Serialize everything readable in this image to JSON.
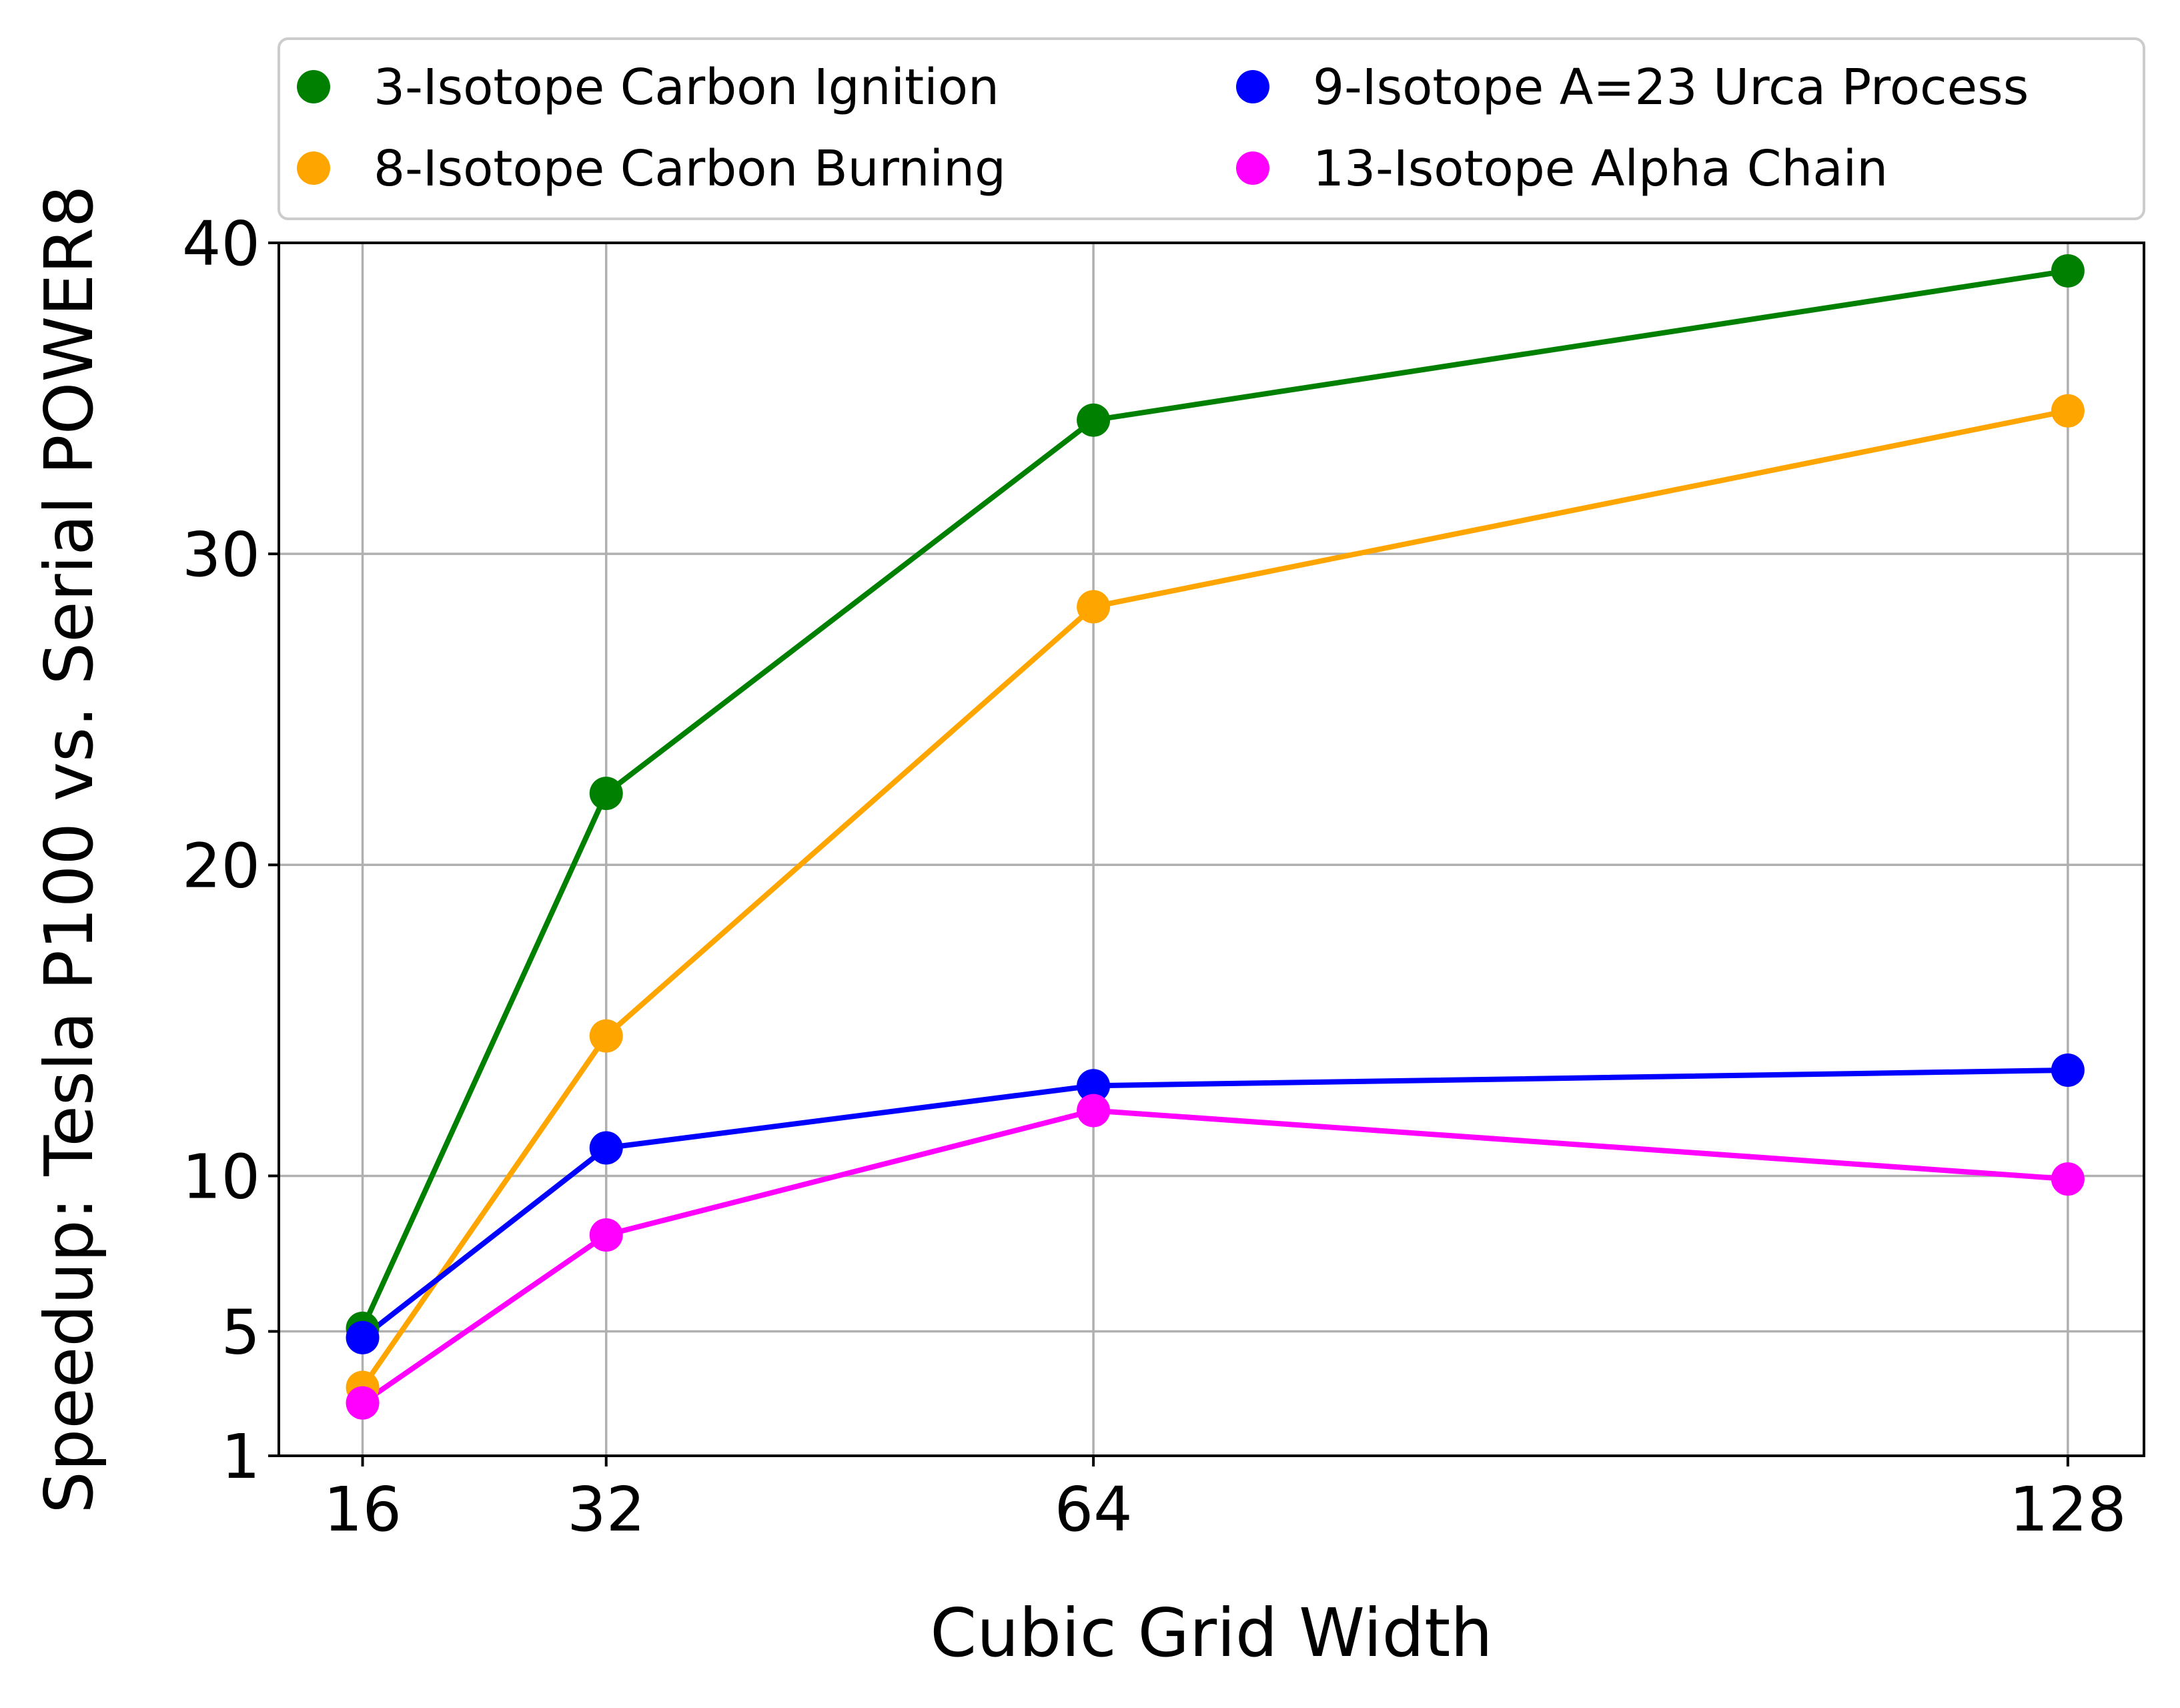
{
  "chart_data": {
    "type": "line",
    "title": "",
    "xlabel": "Cubic Grid Width",
    "ylabel": "Speedup: Tesla P100 vs. Serial POWER8",
    "x": [
      16,
      32,
      64,
      128
    ],
    "xticks": [
      16,
      32,
      64,
      128
    ],
    "yticks": [
      1,
      5,
      10,
      20,
      30,
      40
    ],
    "xlim": [
      10.5,
      133
    ],
    "ylim": [
      1,
      40
    ],
    "grid": true,
    "legend": "top, two columns, above plot",
    "series": [
      {
        "name": "3-Isotope Carbon Ignition",
        "color": "#008000",
        "values": [
          5.1,
          22.3,
          34.3,
          39.1
        ]
      },
      {
        "name": "8-Isotope Carbon Burning",
        "color": "#FFA500",
        "values": [
          3.2,
          14.5,
          28.3,
          34.6
        ]
      },
      {
        "name": "9-Isotope A=23 Urca Process",
        "color": "#0000FF",
        "values": [
          4.8,
          10.9,
          12.9,
          13.4
        ]
      },
      {
        "name": "13-Isotope Alpha Chain",
        "color": "#FF00FF",
        "values": [
          2.7,
          8.1,
          12.1,
          9.9
        ]
      }
    ]
  }
}
